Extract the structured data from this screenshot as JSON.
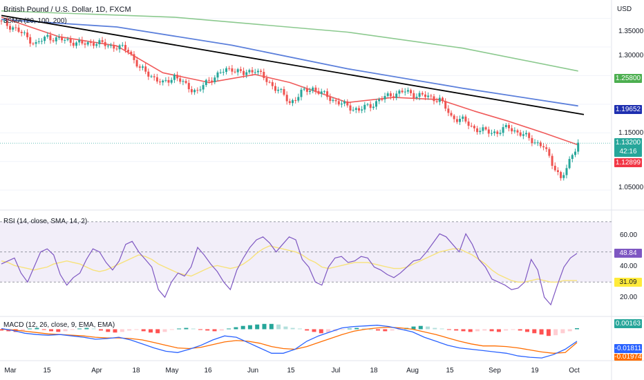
{
  "header": {
    "symbol_title": "British Pound / U.S. Dollar, 1D, FXCM",
    "indicator_sma": "3SMA (20, 100, 200)",
    "currency": "USD"
  },
  "price_axis": {
    "ticks": [
      "1.35000",
      "1.30000",
      "1.25000",
      "1.15000",
      "1.05000"
    ],
    "tick_values": [
      1.35,
      1.3,
      1.25,
      1.15,
      1.05
    ],
    "tags": {
      "sma200": {
        "value": "1.25800",
        "color": "#4caf50"
      },
      "sma100": {
        "value": "1.19652",
        "color": "#1e2fb0"
      },
      "price": {
        "value": "1.13200",
        "color": "#26a69a"
      },
      "countdown": "42:16",
      "sma20": {
        "value": "1.12899",
        "color": "#f23645"
      }
    }
  },
  "rsi": {
    "label": "RSI (14, close, SMA, 14, 2)",
    "ticks": [
      "60.00",
      "40.00",
      "20.00"
    ],
    "tick_values": [
      60,
      40,
      20
    ],
    "value_tag": {
      "value": "48.84",
      "color": "#7e57c2"
    },
    "sma_tag": {
      "value": "31.09",
      "color": "#ffeb3b"
    }
  },
  "macd": {
    "label": "MACD (12, 26, close, 9, EMA, EMA)",
    "hist_tag": {
      "value": "0.00163",
      "color": "#26a69a"
    },
    "macd_tag": {
      "value": "-0.01811",
      "color": "#2962ff"
    },
    "signal_tag": {
      "value": "-0.01974",
      "color": "#ff6d00"
    }
  },
  "time_axis": {
    "labels": [
      "Mar",
      "15",
      "Apr",
      "18",
      "May",
      "16",
      "Jun",
      "15",
      "Jul",
      "18",
      "Aug",
      "15",
      "Sep",
      "19",
      "Oct"
    ]
  },
  "colors": {
    "up": "#26a69a",
    "down": "#ef5350",
    "sma20": "#f05a5a",
    "sma100": "#5b7fdb",
    "sma200": "#8bc98e",
    "trendline": "#000000",
    "rsi_line": "#7e57c2",
    "rsi_sma": "#f7e27a",
    "rsi_band": "#ede7f6"
  },
  "chart_data": {
    "type": "candlestick",
    "title": "British Pound / U.S. Dollar, 1D, FXCM",
    "ylabel": "USD",
    "ylim": [
      1.02,
      1.37
    ],
    "x_labels": [
      "Mar",
      "15",
      "Apr",
      "18",
      "May",
      "16",
      "Jun",
      "15",
      "Jul",
      "18",
      "Aug",
      "15",
      "Sep",
      "19",
      "Oct"
    ],
    "close_path": [
      [
        0,
        1.342
      ],
      [
        4,
        1.335
      ],
      [
        8,
        1.32
      ],
      [
        12,
        1.305
      ],
      [
        16,
        1.318
      ],
      [
        20,
        1.313
      ],
      [
        24,
        1.31
      ],
      [
        28,
        1.305
      ],
      [
        32,
        1.308
      ],
      [
        36,
        1.304
      ],
      [
        40,
        1.3
      ],
      [
        44,
        1.295
      ],
      [
        48,
        1.262
      ],
      [
        52,
        1.25
      ],
      [
        56,
        1.235
      ],
      [
        60,
        1.25
      ],
      [
        64,
        1.232
      ],
      [
        68,
        1.222
      ],
      [
        72,
        1.242
      ],
      [
        76,
        1.255
      ],
      [
        80,
        1.263
      ],
      [
        84,
        1.252
      ],
      [
        88,
        1.262
      ],
      [
        92,
        1.24
      ],
      [
        96,
        1.226
      ],
      [
        100,
        1.202
      ],
      [
        104,
        1.22
      ],
      [
        108,
        1.228
      ],
      [
        112,
        1.216
      ],
      [
        116,
        1.205
      ],
      [
        120,
        1.196
      ],
      [
        124,
        1.19
      ],
      [
        128,
        1.198
      ],
      [
        132,
        1.21
      ],
      [
        136,
        1.218
      ],
      [
        140,
        1.222
      ],
      [
        144,
        1.216
      ],
      [
        148,
        1.213
      ],
      [
        152,
        1.208
      ],
      [
        156,
        1.178
      ],
      [
        160,
        1.172
      ],
      [
        164,
        1.158
      ],
      [
        168,
        1.152
      ],
      [
        172,
        1.151
      ],
      [
        176,
        1.16
      ],
      [
        180,
        1.148
      ],
      [
        184,
        1.138
      ],
      [
        188,
        1.125
      ],
      [
        192,
        1.089
      ],
      [
        194,
        1.07
      ],
      [
        196,
        1.085
      ],
      [
        198,
        1.115
      ],
      [
        200,
        1.132
      ]
    ],
    "series": [
      {
        "name": "SMA 20",
        "points": [
          [
            0,
            1.352
          ],
          [
            20,
            1.318
          ],
          [
            40,
            1.302
          ],
          [
            56,
            1.255
          ],
          [
            72,
            1.238
          ],
          [
            88,
            1.252
          ],
          [
            100,
            1.238
          ],
          [
            120,
            1.203
          ],
          [
            136,
            1.212
          ],
          [
            152,
            1.208
          ],
          [
            164,
            1.188
          ],
          [
            176,
            1.17
          ],
          [
            188,
            1.15
          ],
          [
            200,
            1.129
          ]
        ]
      },
      {
        "name": "SMA 100",
        "points": [
          [
            0,
            1.348
          ],
          [
            40,
            1.335
          ],
          [
            80,
            1.303
          ],
          [
            120,
            1.262
          ],
          [
            160,
            1.228
          ],
          [
            200,
            1.197
          ]
        ]
      },
      {
        "name": "SMA 200",
        "points": [
          [
            0,
            1.363
          ],
          [
            60,
            1.352
          ],
          [
            120,
            1.326
          ],
          [
            160,
            1.298
          ],
          [
            200,
            1.258
          ]
        ]
      },
      {
        "name": "Trendline",
        "points": [
          [
            0,
            1.355
          ],
          [
            202,
            1.182
          ]
        ]
      }
    ],
    "rsi": {
      "ylim": [
        10,
        75
      ],
      "bands": [
        70,
        50,
        30
      ],
      "values": [
        42,
        44,
        46,
        36,
        30,
        40,
        50,
        52,
        48,
        35,
        28,
        33,
        36,
        45,
        52,
        50,
        43,
        38,
        44,
        55,
        57,
        50,
        45,
        40,
        25,
        20,
        30,
        36,
        34,
        40,
        53,
        48,
        42,
        37,
        30,
        25,
        38,
        46,
        53,
        58,
        60,
        56,
        50,
        55,
        60,
        58,
        45,
        40,
        30,
        28,
        40,
        46,
        47,
        43,
        44,
        47,
        46,
        40,
        38,
        35,
        33,
        36,
        40,
        44,
        45,
        50,
        56,
        62,
        60,
        55,
        50,
        62,
        55,
        45,
        40,
        32,
        30,
        28,
        25,
        26,
        30,
        45,
        38,
        20,
        15,
        28,
        40,
        46,
        49
      ],
      "sma_values": [
        44,
        43,
        41,
        40,
        39,
        38,
        39,
        40,
        42,
        43,
        44,
        43,
        42,
        40,
        38,
        37,
        38,
        40,
        42,
        44,
        46,
        48,
        47,
        45,
        42,
        40,
        38,
        36,
        35,
        34,
        36,
        38,
        40,
        41,
        40,
        39,
        40,
        42,
        45,
        49,
        52,
        54,
        53,
        52,
        51,
        50,
        48,
        45,
        43,
        40,
        39,
        40,
        41,
        42,
        43,
        43,
        43,
        42,
        41,
        40,
        39,
        39,
        40,
        42,
        44,
        46,
        48,
        50,
        51,
        52,
        52,
        50,
        48,
        45,
        42,
        38,
        35,
        33,
        31,
        30,
        30,
        31,
        32,
        31,
        30,
        30,
        31,
        31,
        31
      ]
    },
    "macd": {
      "ylim": [
        -0.045,
        0.015
      ],
      "histogram": [
        -0.002,
        -0.003,
        -0.004,
        -0.002,
        0.001,
        0.002,
        -0.001,
        -0.003,
        -0.004,
        -0.003,
        -0.001,
        0.001,
        0.002,
        0.001,
        -0.002,
        -0.004,
        -0.005,
        -0.004,
        -0.002,
        -0.001,
        -0.003,
        -0.005,
        -0.006,
        -0.004,
        -0.001,
        0.001,
        0.002,
        0.001,
        -0.001,
        -0.002,
        -0.003,
        -0.002,
        0.001,
        0.003,
        0.005,
        0.006,
        0.007,
        0.008,
        0.008,
        0.007,
        0.004,
        0.002,
        0.001,
        -0.002,
        -0.004,
        -0.006,
        -0.005,
        -0.003,
        -0.001,
        0.001,
        0.002,
        0.001,
        0.0,
        -0.002,
        -0.003,
        -0.002,
        -0.001,
        0.002,
        0.004,
        0.005,
        0.004,
        0.002,
        0.001,
        -0.001,
        -0.002,
        -0.003,
        -0.004,
        -0.003,
        -0.002,
        -0.003,
        -0.004,
        -0.002,
        -0.001,
        -0.002,
        -0.004,
        -0.006,
        -0.008,
        -0.01,
        -0.009,
        -0.006,
        -0.003,
        0.0016
      ],
      "macd_line": [
        0.001,
        -0.002,
        -0.006,
        -0.008,
        -0.009,
        -0.008,
        -0.01,
        -0.012,
        -0.015,
        -0.014,
        -0.012,
        -0.016,
        -0.022,
        -0.028,
        -0.033,
        -0.035,
        -0.03,
        -0.024,
        -0.016,
        -0.01,
        -0.012,
        -0.02,
        -0.028,
        -0.036,
        -0.036,
        -0.03,
        -0.018,
        -0.01,
        -0.004,
        0.002,
        0.004,
        0.005,
        0.006,
        0.004,
        0.0,
        -0.004,
        -0.012,
        -0.018,
        -0.024,
        -0.028,
        -0.03,
        -0.032,
        -0.034,
        -0.036,
        -0.04,
        -0.042,
        -0.043,
        -0.038,
        -0.03,
        -0.018
      ],
      "signal_line": [
        0.0,
        -0.001,
        -0.003,
        -0.005,
        -0.007,
        -0.008,
        -0.009,
        -0.01,
        -0.012,
        -0.013,
        -0.013,
        -0.014,
        -0.016,
        -0.02,
        -0.024,
        -0.028,
        -0.029,
        -0.027,
        -0.023,
        -0.019,
        -0.017,
        -0.018,
        -0.021,
        -0.026,
        -0.029,
        -0.03,
        -0.026,
        -0.02,
        -0.014,
        -0.008,
        -0.003,
        0.0,
        0.002,
        0.003,
        0.002,
        0.0,
        -0.004,
        -0.008,
        -0.013,
        -0.018,
        -0.022,
        -0.025,
        -0.025,
        -0.026,
        -0.028,
        -0.031,
        -0.034,
        -0.036,
        -0.035,
        -0.02
      ]
    }
  }
}
